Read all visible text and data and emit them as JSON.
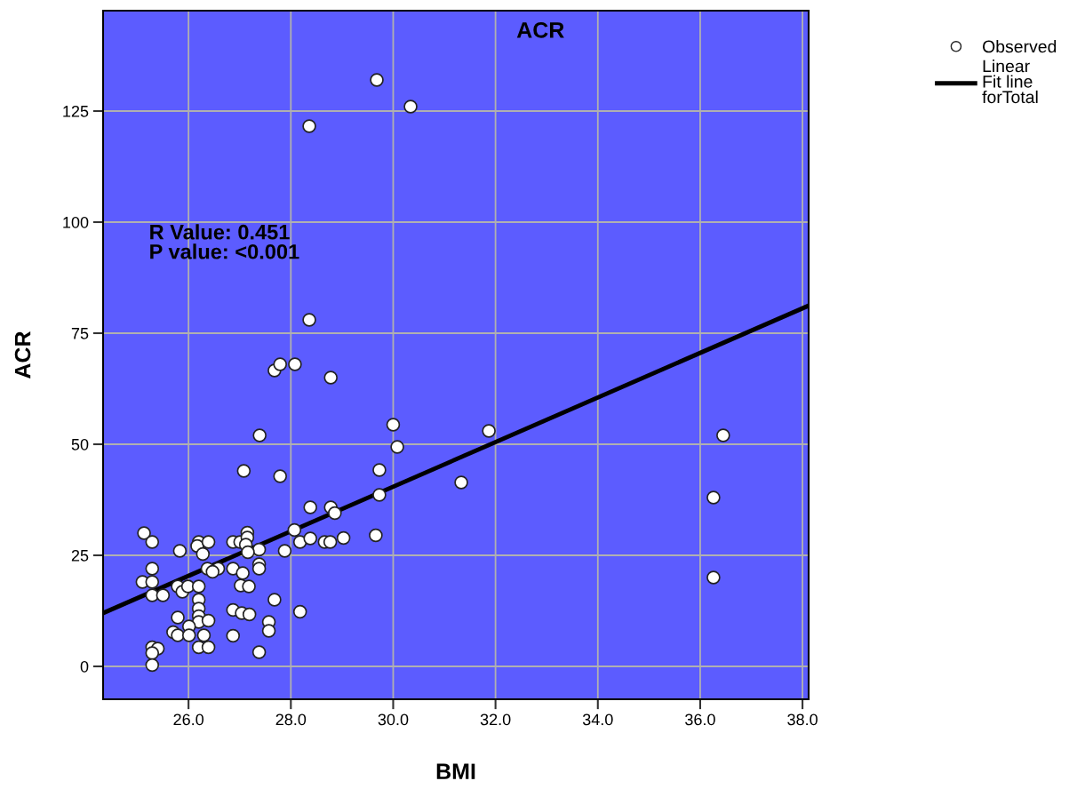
{
  "chart_data": {
    "type": "scatter",
    "title": "ACR",
    "xlabel": "BMI",
    "ylabel": "ACR",
    "xlim": [
      24.33,
      38.12
    ],
    "ylim": [
      -7.4,
      147.6
    ],
    "xticks": [
      {
        "value": 26,
        "label": "26.0"
      },
      {
        "value": 28,
        "label": "28.0"
      },
      {
        "value": 30,
        "label": "30.0"
      },
      {
        "value": 32,
        "label": "32.0"
      },
      {
        "value": 34,
        "label": "34.0"
      },
      {
        "value": 36,
        "label": "36.0"
      },
      {
        "value": 38,
        "label": "38.0"
      }
    ],
    "yticks": [
      0,
      25,
      50,
      75,
      100,
      125
    ],
    "grid": true,
    "legend": "top right",
    "annotations": [
      "R Value: 0.451\nP value: <0.001"
    ],
    "series": [
      {
        "name": "Observed",
        "marker": "circle",
        "color": "#ffffff",
        "x": [
          29.68,
          30.34,
          28.36,
          28.36,
          27.68,
          27.79,
          28.08,
          28.78,
          27.39,
          27.08,
          27.79,
          30.0,
          30.08,
          29.73,
          29.73,
          28.38,
          28.78,
          31.33,
          31.87,
          36.45,
          36.26,
          36.26,
          28.86,
          25.13,
          25.29,
          25.83,
          26.2,
          26.17,
          26.39,
          26.28,
          26.87,
          27.01,
          27.15,
          27.15,
          27.12,
          27.38,
          27.16,
          27.88,
          28.07,
          28.18,
          28.38,
          28.66,
          28.77,
          29.03,
          29.66,
          25.29,
          25.1,
          25.29,
          25.29,
          25.5,
          25.79,
          25.88,
          25.99,
          26.2,
          26.37,
          26.58,
          26.47,
          26.87,
          27.06,
          27.02,
          27.18,
          27.38,
          27.38,
          27.68,
          26.2,
          26.2,
          26.2,
          26.2,
          26.39,
          25.79,
          26.01,
          25.7,
          25.79,
          26.01,
          26.3,
          26.87,
          27.04,
          27.19,
          26.87,
          27.57,
          27.57,
          28.18,
          27.38,
          25.29,
          25.4,
          25.29,
          25.29,
          26.2,
          26.39
        ],
        "values": [
          132,
          126,
          121.6,
          78,
          66.6,
          68,
          68,
          65,
          52,
          44,
          42.8,
          54.4,
          49.4,
          44.2,
          38.6,
          35.8,
          35.8,
          41.4,
          53,
          52,
          38,
          20,
          34.5,
          30,
          28,
          26,
          28,
          27.1,
          28,
          25.3,
          28,
          28,
          30.1,
          29,
          27.4,
          26.3,
          25.7,
          26,
          30.7,
          28,
          28.8,
          28,
          28,
          28.9,
          29.5,
          22,
          19,
          19,
          16,
          16,
          18,
          16.8,
          18,
          18,
          22,
          22,
          21.3,
          22,
          21,
          18.2,
          18,
          23,
          22,
          15,
          15,
          13,
          11.3,
          10,
          10.3,
          11,
          9,
          7.7,
          7,
          7,
          7,
          12.7,
          12,
          11.7,
          6.9,
          10,
          8,
          12.3,
          3.2,
          4.3,
          4,
          3,
          0.3,
          4.3,
          4.3
        ]
      },
      {
        "name": "Linear\nFit line\nforTotal",
        "type": "line",
        "marker": "none",
        "line_style": "solid",
        "color": "#000000",
        "x": [
          24.33,
          38.12
        ],
        "values": [
          12,
          81.2
        ]
      }
    ]
  }
}
